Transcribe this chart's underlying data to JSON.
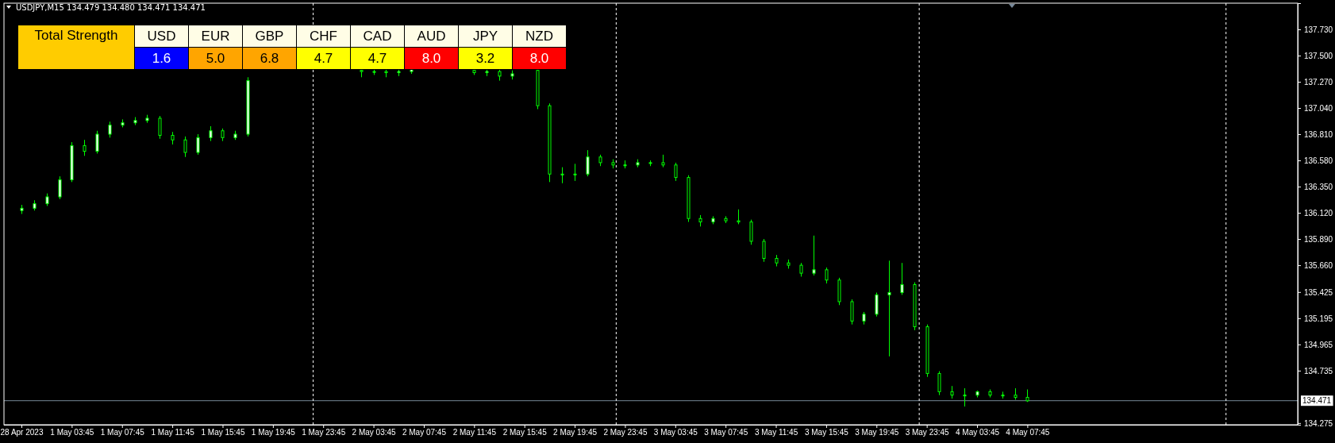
{
  "chart_data": [
    {
      "type": "candlestick",
      "title": "USDJPY,M15 134.479 134.480 134.471 134.471",
      "color": "#00ff00",
      "categories": [
        "28 Apr 2023",
        null,
        null,
        null,
        "1 May 03:45",
        null,
        null,
        null,
        "1 May 07:45",
        null,
        null,
        null,
        "1 May 11:45",
        null,
        null,
        null,
        "1 May 15:45",
        null,
        null,
        null,
        "1 May 19:45",
        null,
        null,
        null,
        "1 May 23:45",
        null,
        null,
        null,
        "2 May 03:45",
        null,
        null,
        null,
        "2 May 07:45",
        null,
        null,
        null,
        "2 May 11:45",
        null,
        null,
        null,
        "2 May 15:45",
        null,
        null,
        null,
        "2 May 19:45",
        null,
        null,
        null,
        "2 May 23:45",
        null,
        null,
        null,
        "3 May 03:45",
        null,
        null,
        null,
        "3 May 07:45",
        null,
        null,
        null,
        "3 May 11:45",
        null,
        null,
        null,
        "3 May 15:45",
        null,
        null,
        null,
        "3 May 19:45",
        null,
        null,
        null,
        "3 May 23:45",
        null,
        null,
        null,
        "4 May 03:45",
        null,
        null,
        null,
        "4 May 07:45",
        null,
        null,
        null,
        null,
        null,
        null,
        null,
        null,
        null,
        null,
        null,
        null,
        null,
        null,
        null,
        null,
        null,
        null,
        null,
        null,
        null
      ],
      "ohlc": [
        [
          136.14,
          136.19,
          136.11,
          136.16
        ],
        [
          136.16,
          136.23,
          136.14,
          136.2
        ],
        [
          136.2,
          136.29,
          136.18,
          136.26
        ],
        [
          136.26,
          136.44,
          136.24,
          136.41
        ],
        [
          136.41,
          136.74,
          136.39,
          136.71
        ],
        [
          136.71,
          136.76,
          136.62,
          136.66
        ],
        [
          136.66,
          136.84,
          136.64,
          136.81
        ],
        [
          136.81,
          136.92,
          136.78,
          136.89
        ],
        [
          136.89,
          136.94,
          136.87,
          136.91
        ],
        [
          136.91,
          136.96,
          136.89,
          136.93
        ],
        [
          136.93,
          136.98,
          136.91,
          136.95
        ],
        [
          136.95,
          136.97,
          136.77,
          136.8
        ],
        [
          136.8,
          136.83,
          136.72,
          136.76
        ],
        [
          136.76,
          136.79,
          136.61,
          136.65
        ],
        [
          136.65,
          136.81,
          136.63,
          136.78
        ],
        [
          136.78,
          136.88,
          136.75,
          136.84
        ],
        [
          136.84,
          136.86,
          136.75,
          136.78
        ],
        [
          136.78,
          136.84,
          136.76,
          136.81
        ],
        [
          136.81,
          137.31,
          136.79,
          137.28
        ],
        null,
        null,
        null,
        null,
        null,
        null,
        null,
        null,
        [
          137.37,
          137.39,
          137.31,
          137.36
        ],
        [
          137.36,
          137.39,
          137.33,
          137.36
        ],
        [
          137.36,
          137.38,
          137.31,
          137.35
        ],
        [
          137.35,
          137.39,
          137.32,
          137.36
        ],
        [
          137.36,
          137.39,
          137.34,
          137.38
        ],
        null,
        null,
        null,
        null,
        [
          137.37,
          137.39,
          137.33,
          137.35
        ],
        [
          137.35,
          137.39,
          137.32,
          137.36
        ],
        [
          137.36,
          137.38,
          137.28,
          137.32
        ],
        [
          137.32,
          137.37,
          137.29,
          137.34
        ],
        null,
        [
          137.37,
          137.39,
          137.03,
          137.06
        ],
        [
          137.06,
          137.08,
          136.39,
          136.46
        ],
        [
          136.46,
          136.52,
          136.38,
          136.46
        ],
        [
          136.46,
          136.55,
          136.4,
          136.46
        ],
        [
          136.46,
          136.67,
          136.44,
          136.61
        ],
        [
          136.61,
          136.63,
          136.53,
          136.56
        ],
        [
          136.56,
          136.59,
          136.51,
          136.54
        ],
        [
          136.54,
          136.58,
          136.51,
          136.54
        ],
        [
          136.54,
          136.59,
          136.52,
          136.56
        ],
        [
          136.56,
          136.58,
          136.53,
          136.56
        ],
        [
          136.56,
          136.63,
          136.52,
          136.54
        ],
        [
          136.54,
          136.56,
          136.4,
          136.43
        ],
        [
          136.43,
          136.45,
          136.04,
          136.07
        ],
        [
          136.07,
          136.1,
          136.0,
          136.04
        ],
        [
          136.04,
          136.09,
          136.02,
          136.07
        ],
        [
          136.07,
          136.09,
          136.03,
          136.05
        ],
        [
          136.05,
          136.15,
          136.02,
          136.04
        ],
        [
          136.04,
          136.06,
          135.84,
          135.87
        ],
        [
          135.87,
          135.89,
          135.69,
          135.72
        ],
        [
          135.72,
          135.75,
          135.65,
          135.68
        ],
        [
          135.68,
          135.71,
          135.63,
          135.66
        ],
        [
          135.66,
          135.68,
          135.56,
          135.59
        ],
        [
          135.59,
          135.92,
          135.57,
          135.62
        ],
        [
          135.62,
          135.64,
          135.5,
          135.53
        ],
        [
          135.53,
          135.55,
          135.31,
          135.34
        ],
        [
          135.34,
          135.36,
          135.14,
          135.17
        ],
        [
          135.17,
          135.25,
          135.14,
          135.23
        ],
        [
          135.23,
          135.42,
          135.21,
          135.4
        ],
        [
          135.4,
          135.7,
          134.86,
          135.42
        ],
        [
          135.42,
          135.68,
          135.4,
          135.49
        ],
        [
          135.49,
          135.51,
          135.09,
          135.12
        ],
        [
          135.12,
          135.14,
          134.68,
          134.71
        ],
        [
          134.71,
          134.73,
          134.52,
          134.55
        ],
        [
          134.55,
          134.6,
          134.49,
          134.52
        ],
        [
          134.52,
          134.58,
          134.42,
          134.52
        ],
        [
          134.52,
          134.56,
          134.5,
          134.55
        ],
        [
          134.55,
          134.57,
          134.5,
          134.52
        ],
        [
          134.52,
          134.55,
          134.49,
          134.52
        ],
        [
          134.52,
          134.58,
          134.48,
          134.5
        ],
        [
          134.5,
          134.57,
          134.46,
          134.47
        ],
        null,
        null,
        null,
        null,
        null,
        null,
        null,
        null,
        null,
        null,
        null,
        null,
        null,
        null,
        null,
        null,
        null,
        null,
        null,
        null,
        null
      ],
      "ylim": [
        134.26,
        137.96
      ],
      "yticks": [
        {
          "value": 137.73,
          "label": "137.730"
        },
        {
          "value": 137.5,
          "label": "137.500"
        },
        {
          "value": 137.27,
          "label": "137.270"
        },
        {
          "value": 137.04,
          "label": "137.040"
        },
        {
          "value": 136.81,
          "label": "136.810"
        },
        {
          "value": 136.58,
          "label": "136.580"
        },
        {
          "value": 136.35,
          "label": "136.350"
        },
        {
          "value": 136.12,
          "label": "136.120"
        },
        {
          "value": 135.89,
          "label": "135.890"
        },
        {
          "value": 135.66,
          "label": "135.660"
        },
        {
          "value": 135.425,
          "label": "135.425"
        },
        {
          "value": 135.195,
          "label": "135.195"
        },
        {
          "value": 134.965,
          "label": "134.965"
        },
        {
          "value": 134.735,
          "label": "134.735"
        },
        {
          "value": 134.275,
          "label": "134.275"
        }
      ],
      "ref_lines": [
        {
          "axis": "y",
          "value": 134.471,
          "label": "134.471",
          "color": "#778899",
          "line_style": "solid"
        }
      ]
    },
    {
      "type": "other",
      "title": "Total Strength",
      "categories": [
        "USD",
        "EUR",
        "GBP",
        "CHF",
        "CAD",
        "AUD",
        "JPY",
        "NZD"
      ],
      "value_labels": [
        "1.6",
        "5.0",
        "6.8",
        "4.7",
        "4.7",
        "8.0",
        "3.2",
        "8.0"
      ],
      "colors": [
        "#0000ff",
        "#ffa500",
        "#ffa500",
        "#ffff00",
        "#ffff00",
        "#ff0000",
        "#ffff00",
        "#ff0000"
      ]
    }
  ]
}
